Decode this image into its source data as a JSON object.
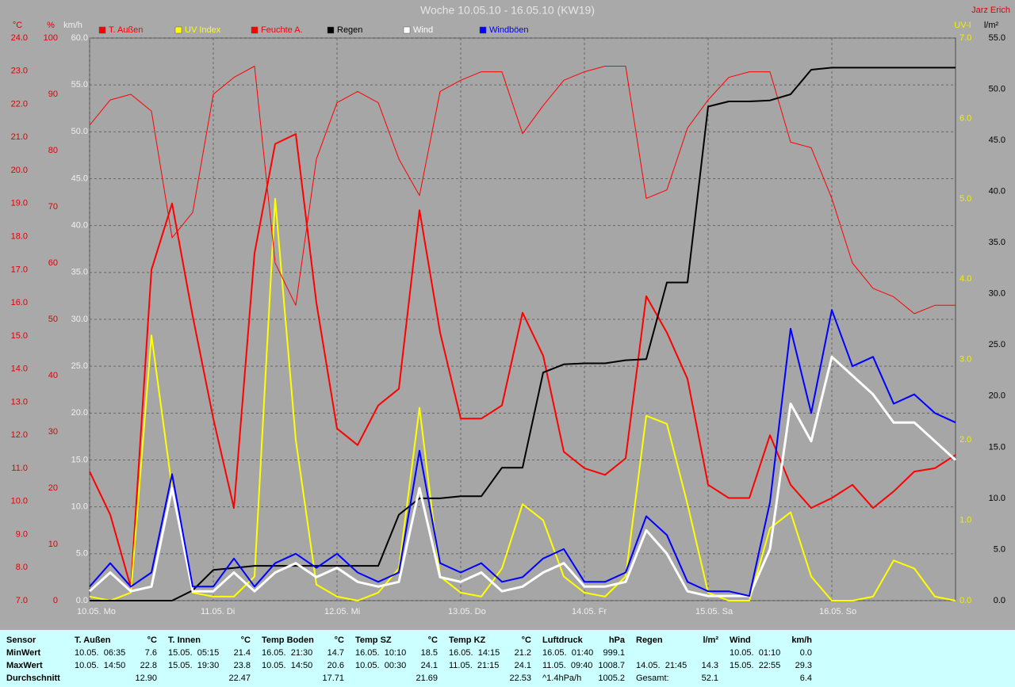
{
  "chart_data": {
    "type": "line",
    "title": "Woche 10.05.10 - 16.05.10 (KW19)",
    "author": "Jarz Erich",
    "xlim": [
      0,
      168
    ],
    "xticks": [
      {
        "value": 0,
        "label": "10.05. Mo"
      },
      {
        "value": 24,
        "label": "11.05. Di"
      },
      {
        "value": 48,
        "label": "12.05. Mi"
      },
      {
        "value": 72,
        "label": "13.05. Do"
      },
      {
        "value": 96,
        "label": "14.05. Fr"
      },
      {
        "value": 120,
        "label": "15.05. Sa"
      },
      {
        "value": 144,
        "label": "16.05. So"
      }
    ],
    "x": [
      0,
      4,
      8,
      12,
      16,
      20,
      24,
      28,
      32,
      36,
      40,
      44,
      48,
      52,
      56,
      60,
      64,
      68,
      72,
      76,
      80,
      84,
      88,
      92,
      96,
      100,
      104,
      108,
      112,
      116,
      120,
      124,
      128,
      132,
      136,
      140,
      144,
      148,
      152,
      156,
      160,
      164,
      168
    ],
    "axes": [
      {
        "label": "°C",
        "color": "#e00000",
        "lim": [
          7,
          24
        ],
        "ticks": [
          {
            "value": 7,
            "label": "7.0"
          },
          {
            "value": 8,
            "label": "8.0"
          },
          {
            "value": 9,
            "label": "9.0"
          },
          {
            "value": 10,
            "label": "10.0"
          },
          {
            "value": 11,
            "label": "11.0"
          },
          {
            "value": 12,
            "label": "12.0"
          },
          {
            "value": 13,
            "label": "13.0"
          },
          {
            "value": 14,
            "label": "14.0"
          },
          {
            "value": 15,
            "label": "15.0"
          },
          {
            "value": 16,
            "label": "16.0"
          },
          {
            "value": 17,
            "label": "17.0"
          },
          {
            "value": 18,
            "label": "18.0"
          },
          {
            "value": 19,
            "label": "19.0"
          },
          {
            "value": 20,
            "label": "20.0"
          },
          {
            "value": 21,
            "label": "21.0"
          },
          {
            "value": 22,
            "label": "22.0"
          },
          {
            "value": 23,
            "label": "23.0"
          },
          {
            "value": 24,
            "label": "24.0"
          }
        ]
      },
      {
        "label": "%",
        "color": "#e00000",
        "lim": [
          0,
          100
        ],
        "ticks": [
          0,
          10,
          20,
          30,
          40,
          50,
          60,
          70,
          80,
          90,
          100
        ]
      },
      {
        "label": "km/h",
        "color": "#f0f0f0",
        "lim": [
          0,
          60
        ],
        "grid": true,
        "ticks": [
          {
            "value": 0,
            "label": "0.0"
          },
          {
            "value": 5,
            "label": "5.0"
          },
          {
            "value": 10,
            "label": "10.0"
          },
          {
            "value": 15,
            "label": "15.0"
          },
          {
            "value": 20,
            "label": "20.0"
          },
          {
            "value": 25,
            "label": "25.0"
          },
          {
            "value": 30,
            "label": "30.0"
          },
          {
            "value": 35,
            "label": "35.0"
          },
          {
            "value": 40,
            "label": "40.0"
          },
          {
            "value": 45,
            "label": "45.0"
          },
          {
            "value": 50,
            "label": "50.0"
          },
          {
            "value": 55,
            "label": "55.0"
          },
          {
            "value": 60,
            "label": "60.0"
          }
        ]
      },
      {
        "label": "UV-I",
        "color": "#f0f000",
        "lim": [
          0,
          7
        ],
        "ticks": [
          {
            "value": 0,
            "label": "0.0"
          },
          {
            "value": 1,
            "label": "1.0"
          },
          {
            "value": 2,
            "label": "2.0"
          },
          {
            "value": 3,
            "label": "3.0"
          },
          {
            "value": 4,
            "label": "4.0"
          },
          {
            "value": 5,
            "label": "5.0"
          },
          {
            "value": 6,
            "label": "6.0"
          },
          {
            "value": 7,
            "label": "7.0"
          }
        ]
      },
      {
        "label": "l/m²",
        "color": "#000000",
        "lim": [
          0,
          55
        ],
        "ticks": [
          {
            "value": 0,
            "label": "0.0"
          },
          {
            "value": 5,
            "label": "5.0"
          },
          {
            "value": 10,
            "label": "10.0"
          },
          {
            "value": 15,
            "label": "15.0"
          },
          {
            "value": 20,
            "label": "20.0"
          },
          {
            "value": 25,
            "label": "25.0"
          },
          {
            "value": 30,
            "label": "30.0"
          },
          {
            "value": 35,
            "label": "35.0"
          },
          {
            "value": 40,
            "label": "40.0"
          },
          {
            "value": 45,
            "label": "45.0"
          },
          {
            "value": 50,
            "label": "50.0"
          },
          {
            "value": 55,
            "label": "55.0"
          }
        ]
      }
    ],
    "series": [
      {
        "name": "T. Außen",
        "color": "#ff0000",
        "axis": 0,
        "width": 2,
        "values": [
          10.9,
          9.6,
          7.4,
          17.0,
          19.0,
          15.6,
          12.5,
          9.8,
          17.5,
          20.8,
          21.1,
          16.0,
          12.2,
          11.7,
          12.9,
          13.4,
          18.8,
          15.1,
          12.5,
          12.5,
          12.9,
          15.7,
          14.4,
          11.5,
          11.0,
          10.8,
          11.3,
          16.2,
          15.1,
          13.7,
          10.5,
          10.1,
          10.1,
          12.0,
          10.5,
          9.8,
          10.1,
          10.5,
          9.8,
          10.3,
          10.9,
          11.0,
          11.4
        ]
      },
      {
        "name": "UV Index",
        "color": "#ffff00",
        "axis": 3,
        "width": 2,
        "values": [
          0.05,
          0.0,
          0.1,
          3.3,
          1.4,
          0.1,
          0.05,
          0.05,
          0.3,
          5.0,
          2.0,
          0.2,
          0.05,
          0.0,
          0.1,
          0.4,
          2.4,
          0.3,
          0.1,
          0.05,
          0.4,
          1.2,
          1.0,
          0.3,
          0.1,
          0.05,
          0.3,
          2.3,
          2.2,
          1.2,
          0.1,
          0.0,
          0.0,
          0.9,
          1.1,
          0.3,
          0.0,
          0.0,
          0.05,
          0.5,
          0.4,
          0.05,
          0.0
        ]
      },
      {
        "name": "Feuchte A.",
        "color": "#ff0000",
        "axis": 1,
        "width": 1,
        "values": [
          84.5,
          89,
          90,
          87,
          64.5,
          69,
          90,
          93,
          95,
          60,
          52.5,
          78.5,
          88.5,
          90.5,
          88.5,
          78.5,
          72,
          90.5,
          92.5,
          94,
          94,
          83,
          88,
          92.5,
          94,
          95,
          95,
          71.5,
          73,
          84,
          89,
          93,
          94,
          94,
          81.5,
          80.5,
          71.5,
          60,
          55.5,
          54,
          51,
          52.5,
          52.5
        ]
      },
      {
        "name": "Regen",
        "color": "#000000",
        "axis": 4,
        "width": 2,
        "values": [
          0,
          0,
          0,
          0,
          0,
          1.0,
          3.0,
          3.2,
          3.4,
          3.4,
          3.4,
          3.4,
          3.4,
          3.4,
          3.4,
          8.4,
          10.0,
          10.0,
          10.2,
          10.2,
          13.0,
          13.0,
          22.3,
          23.1,
          23.2,
          23.2,
          23.5,
          23.6,
          31.1,
          31.1,
          48.3,
          48.8,
          48.8,
          48.9,
          49.5,
          51.9,
          52.1,
          52.1,
          52.1,
          52.1,
          52.1,
          52.1,
          52.1
        ]
      },
      {
        "name": "Wind",
        "color": "#ffffff",
        "axis": 2,
        "width": 3,
        "values": [
          1.0,
          3.0,
          1.0,
          1.5,
          12.0,
          1.0,
          1.0,
          3.0,
          1.0,
          3.0,
          4.0,
          2.5,
          3.5,
          2.0,
          1.5,
          2.0,
          12.0,
          2.5,
          2.0,
          3.0,
          1.0,
          1.5,
          3.0,
          4.0,
          1.5,
          1.5,
          2.0,
          7.5,
          5.0,
          1.0,
          0.5,
          0.5,
          0.5,
          5.5,
          21.0,
          17.0,
          26.0,
          24.0,
          22.0,
          19.0,
          19.0,
          17.0,
          15.0
        ]
      },
      {
        "name": "Windböen",
        "color": "#0000ff",
        "axis": 2,
        "width": 2,
        "values": [
          1.5,
          4.0,
          1.5,
          3.0,
          13.5,
          1.5,
          1.5,
          4.5,
          1.5,
          4.0,
          5.0,
          3.5,
          5.0,
          3.0,
          2.0,
          3.0,
          16.0,
          4.0,
          3.0,
          4.0,
          2.0,
          2.5,
          4.5,
          5.5,
          2.0,
          2.0,
          3.0,
          9.0,
          7.0,
          2.0,
          1.0,
          1.0,
          0.5,
          10.5,
          29.0,
          20.0,
          31.0,
          25.0,
          26.0,
          21.0,
          22.0,
          20.0,
          19.0
        ]
      }
    ]
  },
  "table": {
    "row_labels": [
      "Sensor",
      "MinWert",
      "MaxWert",
      "Durchschnitt"
    ],
    "groups": [
      {
        "name": "T. Außen",
        "unit": "°C",
        "min": {
          "time": "10.05.  06:35",
          "value": "7.6"
        },
        "max": {
          "time": "10.05.  14:50",
          "value": "22.8"
        },
        "avg": "12.90"
      },
      {
        "name": "T. Innen",
        "unit": "°C",
        "min": {
          "time": "15.05.  05:15",
          "value": "21.4"
        },
        "max": {
          "time": "15.05.  19:30",
          "value": "23.8"
        },
        "avg": "22.47"
      },
      {
        "name": "Temp Boden",
        "unit": "°C",
        "min": {
          "time": "16.05.  21:30",
          "value": "14.7"
        },
        "max": {
          "time": "10.05.  14:50",
          "value": "20.6"
        },
        "avg": "17.71"
      },
      {
        "name": "Temp SZ",
        "unit": "°C",
        "min": {
          "time": "16.05.  10:10",
          "value": "18.5"
        },
        "max": {
          "time": "10.05.  00:30",
          "value": "24.1"
        },
        "avg": "21.69"
      },
      {
        "name": "Temp KZ",
        "unit": "°C",
        "min": {
          "time": "16.05.  14:15",
          "value": "21.2"
        },
        "max": {
          "time": "11.05.  21:15",
          "value": "24.1"
        },
        "avg": "22.53"
      },
      {
        "name": "Luftdruck",
        "unit": "hPa",
        "min": {
          "time": "16.05.  01:40",
          "value": "999.1"
        },
        "max": {
          "time": "11.05.  09:40",
          "value": "1008.7"
        },
        "avg_label": "^1.4hPa/h",
        "avg": "1005.2"
      },
      {
        "name": "Regen",
        "unit": "l/m²",
        "max": {
          "time": "14.05.  21:45",
          "value": "14.3"
        },
        "avg_label": "Gesamt:",
        "avg": "52.1"
      },
      {
        "name": "Wind",
        "unit": "km/h",
        "min": {
          "time": "10.05.  01:10",
          "value": "0.0"
        },
        "max": {
          "time": "15.05.  22:55",
          "value": "29.3"
        },
        "avg": "6.4"
      }
    ]
  }
}
